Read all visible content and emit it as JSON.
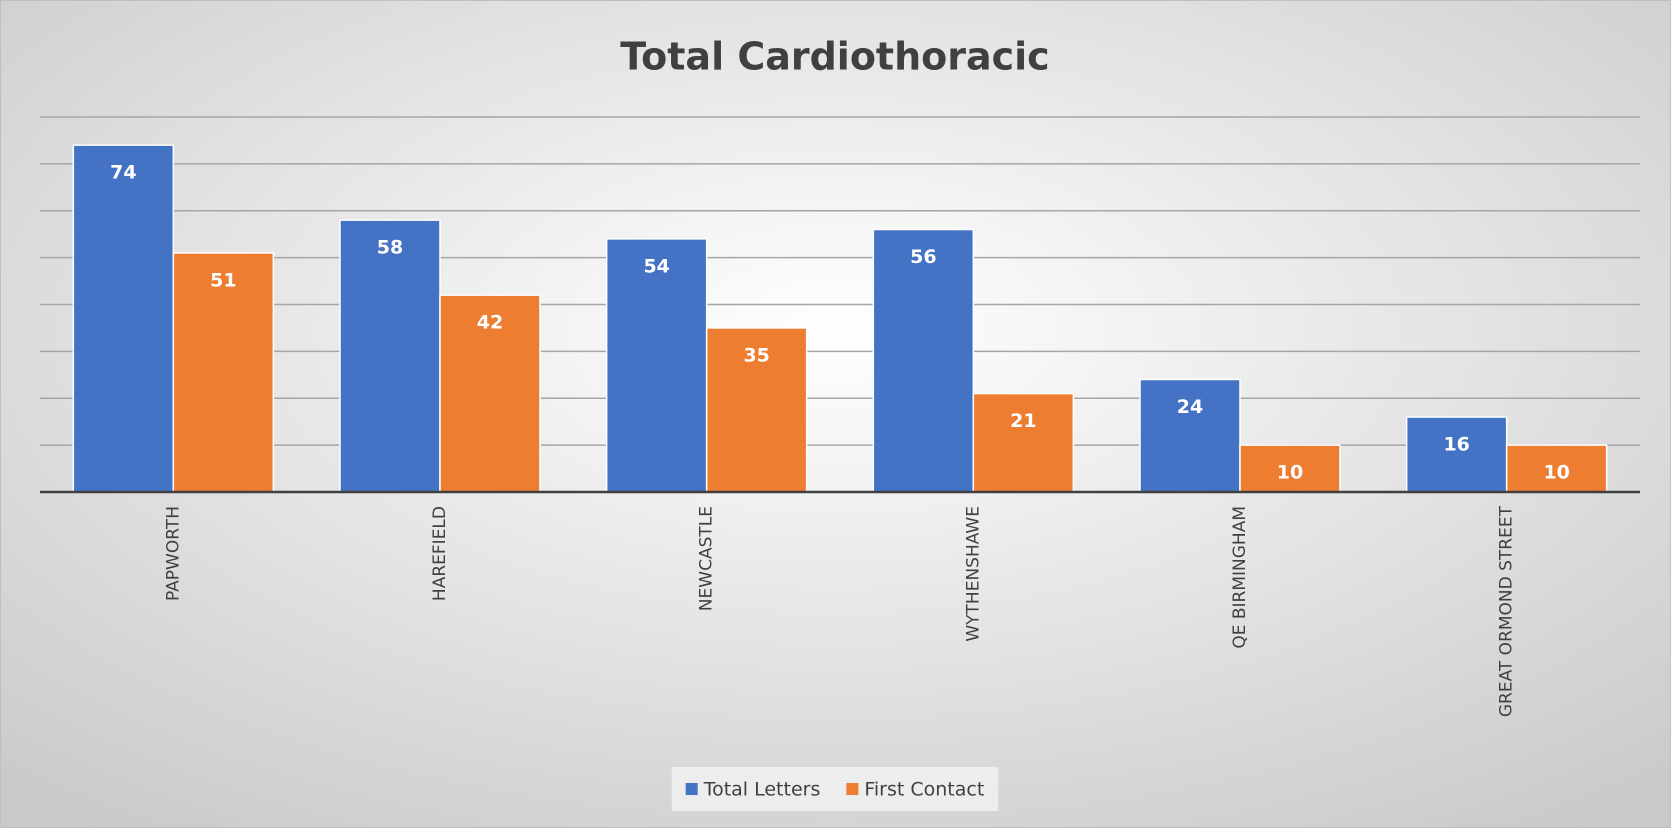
{
  "chart_data": {
    "type": "bar",
    "title": "Total Cardiothoracic",
    "categories": [
      "PAPWORTH",
      "HAREFIELD",
      "NEWCASTLE",
      "WYTHENSHAWE",
      "QE BIRMINGHAM",
      "GREAT ORMOND STREET"
    ],
    "series": [
      {
        "name": "Total Letters",
        "color": "#4472c4",
        "values": [
          74,
          58,
          54,
          56,
          24,
          16
        ]
      },
      {
        "name": "First Contact",
        "color": "#ed7d31",
        "values": [
          51,
          42,
          35,
          21,
          10,
          10
        ]
      }
    ],
    "ylim": [
      0,
      80
    ],
    "yticks": [
      0,
      10,
      20,
      30,
      40,
      50,
      60,
      70,
      80
    ],
    "grid": true,
    "legend": "bottom"
  }
}
